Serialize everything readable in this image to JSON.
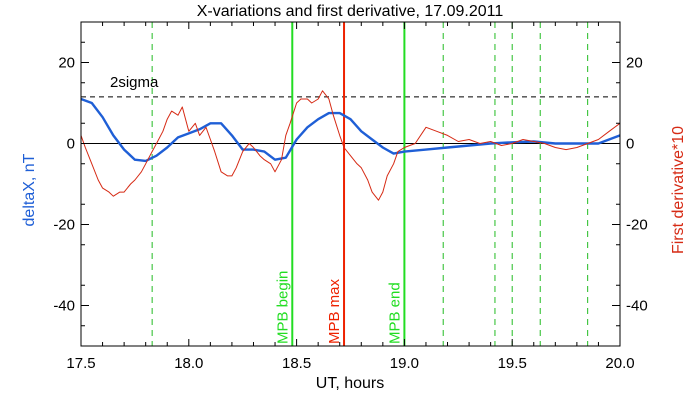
{
  "chart_data": {
    "type": "line",
    "title": "X-variations and first derivative, 17.09.2011",
    "xlabel": "UT, hours",
    "ylabel_left": "deltaX, nT",
    "ylabel_right": "First derivative*10",
    "xlim": [
      17.5,
      20.0
    ],
    "ylim": [
      -50,
      30
    ],
    "x_ticks": [
      "17.5",
      "18.0",
      "18.5",
      "19.0",
      "19.5",
      "20.0"
    ],
    "y_ticks": [
      "20",
      "0",
      "-20",
      "-40"
    ],
    "y_tick_values": [
      20,
      0,
      -20,
      -40
    ],
    "x_tick_values": [
      17.5,
      18.0,
      18.5,
      19.0,
      19.5,
      20.0
    ],
    "colors": {
      "deltaX": "#1f5fd6",
      "derivative": "#d62a14",
      "mpb_begin": "#22dd22",
      "mpb_max": "#ee2200",
      "mpb_end": "#22dd22",
      "dashed": "#22bb22"
    },
    "sigma_label": "2sigma",
    "sigma_level": 11.5,
    "series": [
      {
        "key": "deltaX",
        "x": [
          17.5,
          17.55,
          17.6,
          17.65,
          17.7,
          17.75,
          17.8,
          17.85,
          17.9,
          17.95,
          18.0,
          18.05,
          18.1,
          18.15,
          18.2,
          18.25,
          18.3,
          18.35,
          18.4,
          18.45,
          18.5,
          18.55,
          18.6,
          18.65,
          18.7,
          18.75,
          18.8,
          18.85,
          18.9,
          18.95,
          19.0,
          19.1,
          19.2,
          19.3,
          19.4,
          19.5,
          19.6,
          19.7,
          19.8,
          19.9,
          20.0
        ],
        "y": [
          11,
          10,
          6.5,
          2,
          -1.5,
          -4,
          -4.3,
          -3,
          -1,
          1.5,
          2.5,
          3.5,
          5,
          5,
          2,
          -1.5,
          -1.5,
          -2,
          -4,
          -3.5,
          1,
          4,
          6,
          7.5,
          7.5,
          6,
          3,
          1,
          -1,
          -2.5,
          -2,
          -1.5,
          -1,
          -0.5,
          0,
          0.3,
          0.5,
          0,
          0,
          0,
          2
        ]
      },
      {
        "key": "derivative",
        "x": [
          17.5,
          17.52,
          17.55,
          17.58,
          17.6,
          17.63,
          17.65,
          17.68,
          17.7,
          17.73,
          17.75,
          17.78,
          17.8,
          17.83,
          17.85,
          17.88,
          17.9,
          17.92,
          17.95,
          17.97,
          18.0,
          18.03,
          18.05,
          18.08,
          18.1,
          18.12,
          18.15,
          18.18,
          18.2,
          18.22,
          18.25,
          18.28,
          18.3,
          18.33,
          18.35,
          18.38,
          18.4,
          18.43,
          18.45,
          18.47,
          18.5,
          18.52,
          18.55,
          18.57,
          18.6,
          18.62,
          18.65,
          18.67,
          18.7,
          18.72,
          18.75,
          18.78,
          18.8,
          18.83,
          18.85,
          18.88,
          18.9,
          18.92,
          18.95,
          18.97,
          19.0,
          19.05,
          19.1,
          19.15,
          19.2,
          19.25,
          19.3,
          19.35,
          19.4,
          19.45,
          19.5,
          19.55,
          19.6,
          19.65,
          19.7,
          19.75,
          19.8,
          19.85,
          19.9,
          19.95,
          20.0
        ],
        "y": [
          2,
          -1,
          -5,
          -9,
          -11,
          -12,
          -13,
          -12,
          -12,
          -10,
          -9,
          -7,
          -5,
          -2,
          0,
          3,
          6,
          8,
          7,
          9,
          3,
          5,
          2,
          4,
          1,
          -2,
          -7,
          -8,
          -8,
          -6,
          -2,
          0,
          -1,
          -3,
          -4,
          -5,
          -7,
          -4,
          2,
          5,
          10,
          11,
          11,
          10,
          11,
          13,
          11,
          7,
          2,
          -1,
          -3,
          -5,
          -6,
          -9,
          -12,
          -14,
          -12,
          -8,
          -5,
          -2,
          -1,
          0,
          4,
          3,
          2,
          0.5,
          1,
          0,
          0.5,
          -0.5,
          0,
          1,
          0.5,
          0,
          -1,
          -1.5,
          -1,
          0,
          1,
          3,
          5
        ]
      }
    ],
    "vertical_lines": [
      {
        "x": 18.48,
        "label": "MPB begin",
        "style": "solid",
        "color_key": "mpb_begin"
      },
      {
        "x": 18.72,
        "label": "MPB max",
        "style": "solid",
        "color_key": "mpb_max"
      },
      {
        "x": 19.0,
        "label": "MPB end",
        "style": "solid",
        "color_key": "mpb_end"
      }
    ],
    "dashed_lines_x": [
      17.83,
      19.18,
      19.42,
      19.5,
      19.63,
      19.85
    ],
    "zero_line": 0
  }
}
